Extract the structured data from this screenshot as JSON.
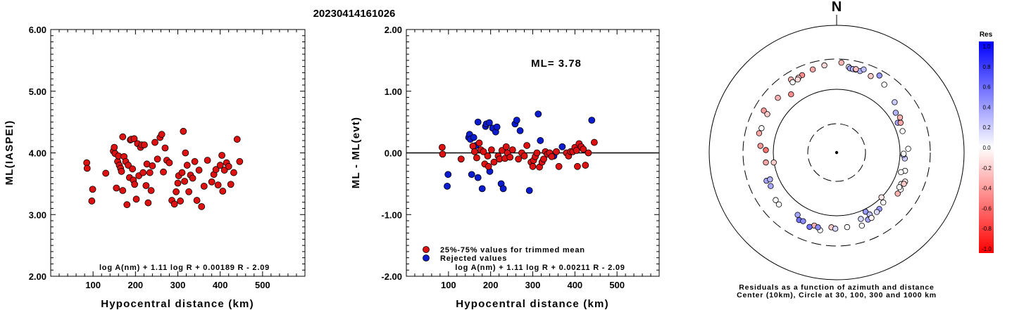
{
  "title": "20230414161026",
  "chart_data": [
    {
      "type": "scatter",
      "ylabel": "ML(IASPEI)",
      "xlabel": "Hypocentral distance (km)",
      "xlim": [
        0,
        600
      ],
      "ylim": [
        2.0,
        6.0
      ],
      "xticks": [
        "100",
        "200",
        "300",
        "400",
        "500"
      ],
      "yticks": [
        "2.00",
        "3.00",
        "4.00",
        "5.00",
        "6.00"
      ],
      "formula": "log A(nm) + 1.11 log R + 0.00189 R - 2.09",
      "point_color": "#dd1111",
      "points": [
        [
          85,
          3.84
        ],
        [
          86,
          3.75
        ],
        [
          99,
          3.41
        ],
        [
          97,
          3.22
        ],
        [
          130,
          3.67
        ],
        [
          148,
          4.03
        ],
        [
          150,
          4.09
        ],
        [
          152,
          3.99
        ],
        [
          155,
          3.43
        ],
        [
          158,
          3.86
        ],
        [
          160,
          3.95
        ],
        [
          162,
          3.8
        ],
        [
          165,
          3.75
        ],
        [
          167,
          3.7
        ],
        [
          170,
          4.26
        ],
        [
          170,
          3.39
        ],
        [
          173,
          3.94
        ],
        [
          177,
          3.86
        ],
        [
          180,
          3.16
        ],
        [
          183,
          3.8
        ],
        [
          186,
          3.6
        ],
        [
          188,
          4.21
        ],
        [
          190,
          4.22
        ],
        [
          193,
          3.74
        ],
        [
          195,
          3.56
        ],
        [
          197,
          4.23
        ],
        [
          198,
          3.49
        ],
        [
          202,
          3.25
        ],
        [
          205,
          4.15
        ],
        [
          208,
          3.63
        ],
        [
          212,
          4.09
        ],
        [
          215,
          4.13
        ],
        [
          218,
          3.68
        ],
        [
          221,
          4.13
        ],
        [
          225,
          3.47
        ],
        [
          227,
          3.82
        ],
        [
          230,
          3.19
        ],
        [
          234,
          3.68
        ],
        [
          237,
          3.39
        ],
        [
          240,
          3.79
        ],
        [
          246,
          4.17
        ],
        [
          252,
          3.9
        ],
        [
          258,
          4.25
        ],
        [
          262,
          4.3
        ],
        [
          266,
          3.69
        ],
        [
          270,
          4.08
        ],
        [
          274,
          3.88
        ],
        [
          280,
          3.84
        ],
        [
          286,
          3.23
        ],
        [
          292,
          3.17
        ],
        [
          296,
          3.37
        ],
        [
          300,
          3.51
        ],
        [
          302,
          3.63
        ],
        [
          306,
          3.22
        ],
        [
          310,
          3.68
        ],
        [
          313,
          4.35
        ],
        [
          316,
          3.54
        ],
        [
          318,
          4.0
        ],
        [
          322,
          3.8
        ],
        [
          326,
          3.37
        ],
        [
          330,
          3.64
        ],
        [
          335,
          3.59
        ],
        [
          340,
          3.86
        ],
        [
          345,
          3.23
        ],
        [
          350,
          3.72
        ],
        [
          356,
          3.13
        ],
        [
          362,
          3.46
        ],
        [
          370,
          3.88
        ],
        [
          380,
          3.53
        ],
        [
          385,
          3.65
        ],
        [
          390,
          3.73
        ],
        [
          395,
          3.48
        ],
        [
          400,
          3.8
        ],
        [
          404,
          3.96
        ],
        [
          406,
          3.38
        ],
        [
          410,
          3.72
        ],
        [
          415,
          3.84
        ],
        [
          420,
          3.78
        ],
        [
          425,
          3.49
        ],
        [
          432,
          3.68
        ],
        [
          440,
          4.22
        ],
        [
          446,
          3.86
        ]
      ]
    },
    {
      "type": "scatter",
      "ylabel": "ML - ML(evt)",
      "xlabel": "Hypocentral distance (km)",
      "xlim": [
        0,
        600
      ],
      "ylim": [
        -2.0,
        2.0
      ],
      "xticks": [
        "100",
        "200",
        "300",
        "400",
        "500"
      ],
      "yticks": [
        "-2.00",
        "-1.00",
        "0.00",
        "1.00",
        "2.00"
      ],
      "annotation": "ML= 3.78",
      "formula": "log A(nm) + 1.11 log R + 0.00211 R - 2.09",
      "legend": [
        {
          "label": "25%-75% values for trimmed mean",
          "color": "#dd1111"
        },
        {
          "label": "Rejected values",
          "color": "#0b1bd0"
        }
      ],
      "reference_line_y": 0.0,
      "points_trimmed": [
        [
          85,
          0.09
        ],
        [
          86,
          -0.02
        ],
        [
          130,
          -0.1
        ],
        [
          158,
          0.11
        ],
        [
          162,
          0.02
        ],
        [
          167,
          -0.08
        ],
        [
          173,
          0.16
        ],
        [
          177,
          0.05
        ],
        [
          183,
          0.02
        ],
        [
          186,
          -0.18
        ],
        [
          193,
          -0.05
        ],
        [
          195,
          -0.22
        ],
        [
          202,
          0.05
        ],
        [
          208,
          -0.15
        ],
        [
          218,
          -0.05
        ],
        [
          221,
          -0.1
        ],
        [
          227,
          0.04
        ],
        [
          234,
          -0.09
        ],
        [
          237,
          0.1
        ],
        [
          240,
          0.0
        ],
        [
          246,
          -0.07
        ],
        [
          252,
          0.05
        ],
        [
          266,
          -0.1
        ],
        [
          274,
          0.0
        ],
        [
          280,
          -0.05
        ],
        [
          286,
          0.12
        ],
        [
          296,
          -0.15
        ],
        [
          300,
          -0.22
        ],
        [
          302,
          -0.12
        ],
        [
          306,
          -0.06
        ],
        [
          310,
          0.0
        ],
        [
          316,
          -0.23
        ],
        [
          322,
          -0.15
        ],
        [
          326,
          -0.1
        ],
        [
          330,
          0.02
        ],
        [
          335,
          -0.02
        ],
        [
          340,
          0.0
        ],
        [
          345,
          -0.06
        ],
        [
          356,
          0.02
        ],
        [
          362,
          -0.22
        ],
        [
          380,
          0.0
        ],
        [
          385,
          -0.05
        ],
        [
          390,
          0.02
        ],
        [
          395,
          0.02
        ],
        [
          400,
          0.09
        ],
        [
          404,
          0.04
        ],
        [
          406,
          -0.22
        ],
        [
          410,
          0.15
        ],
        [
          415,
          0.1
        ],
        [
          420,
          0.06
        ],
        [
          425,
          -0.2
        ],
        [
          432,
          0.0
        ],
        [
          446,
          0.17
        ]
      ],
      "points_rejected": [
        [
          97,
          -0.54
        ],
        [
          99,
          -0.35
        ],
        [
          148,
          0.25
        ],
        [
          150,
          0.3
        ],
        [
          152,
          0.22
        ],
        [
          155,
          -0.35
        ],
        [
          160,
          0.25
        ],
        [
          165,
          0.12
        ],
        [
          170,
          0.5
        ],
        [
          170,
          -0.4
        ],
        [
          180,
          -0.58
        ],
        [
          188,
          0.43
        ],
        [
          190,
          0.47
        ],
        [
          197,
          0.49
        ],
        [
          198,
          -0.3
        ],
        [
          205,
          0.4
        ],
        [
          212,
          0.34
        ],
        [
          215,
          0.42
        ],
        [
          225,
          -0.5
        ],
        [
          230,
          -0.58
        ],
        [
          258,
          0.47
        ],
        [
          262,
          0.53
        ],
        [
          270,
          0.36
        ],
        [
          292,
          -0.61
        ],
        [
          313,
          0.63
        ],
        [
          318,
          0.2
        ],
        [
          350,
          -0.05
        ],
        [
          370,
          0.1
        ],
        [
          440,
          0.53
        ]
      ]
    },
    {
      "type": "polar",
      "direction_label": "N",
      "caption_lines": [
        "Residuals as a function of azimuth and distance",
        "Center (10km), Circle at 30, 100, 300 and 1000 km"
      ],
      "colorbar": {
        "title": "Res",
        "ticks": [
          "1.0",
          "0.8",
          "0.6",
          "0.4",
          "0.2",
          "0.0",
          "-0.2",
          "-0.4",
          "-0.6",
          "-0.8",
          "-1.0"
        ],
        "positive_color": "#0000ff",
        "negative_color": "#ff0000"
      },
      "points": [
        {
          "az": 344,
          "dist": 232,
          "res": -0.35
        },
        {
          "az": 352,
          "dist": 246,
          "res": -0.15
        },
        {
          "az": 3,
          "dist": 264,
          "res": -0.3
        },
        {
          "az": 8,
          "dist": 232,
          "res": 0.1
        },
        {
          "az": 9,
          "dist": 222,
          "res": 0.35
        },
        {
          "az": 11,
          "dist": 220,
          "res": 0.28
        },
        {
          "az": 13,
          "dist": 221,
          "res": 0.22
        },
        {
          "az": 16,
          "dist": 218,
          "res": 0.3
        },
        {
          "az": 13,
          "dist": 225,
          "res": -0.25
        },
        {
          "az": 18,
          "dist": 240,
          "res": 0.25
        },
        {
          "az": 29,
          "dist": 246,
          "res": 0.4
        },
        {
          "az": 24,
          "dist": 210,
          "res": -0.2
        },
        {
          "az": 35,
          "dist": 204,
          "res": 0.0
        },
        {
          "az": 336,
          "dist": 218,
          "res": -0.45
        },
        {
          "az": 333,
          "dist": 212,
          "res": -0.2
        },
        {
          "az": 332,
          "dist": 203,
          "res": -0.15
        },
        {
          "az": 328,
          "dist": 229,
          "res": -0.3
        },
        {
          "az": 328,
          "dist": 204,
          "res": 0.0
        },
        {
          "az": 313,
          "dist": 185,
          "res": -0.3
        },
        {
          "az": 322,
          "dist": 147,
          "res": -0.45
        },
        {
          "az": 300,
          "dist": 212,
          "res": -0.4
        },
        {
          "az": 288,
          "dist": 176,
          "res": 0.0
        },
        {
          "az": 299,
          "dist": 178,
          "res": -0.2
        },
        {
          "az": 284,
          "dist": 182,
          "res": -0.35
        },
        {
          "az": 272,
          "dist": 131,
          "res": -0.55
        },
        {
          "az": 261,
          "dist": 101,
          "res": -0.2
        },
        {
          "az": 262,
          "dist": 134,
          "res": -0.35
        },
        {
          "az": 243,
          "dist": 147,
          "res": 0.35
        },
        {
          "az": 232,
          "dist": 166,
          "res": 0.0
        },
        {
          "az": 212,
          "dist": 145,
          "res": 0.35
        },
        {
          "az": 209,
          "dist": 166,
          "res": 0.55
        },
        {
          "az": 206,
          "dist": 161,
          "res": 0.45
        },
        {
          "az": 197,
          "dist": 161,
          "res": -0.3
        },
        {
          "az": 192,
          "dist": 180,
          "res": 0.0
        },
        {
          "az": 184,
          "dist": 153,
          "res": -0.2
        },
        {
          "az": 172,
          "dist": 155,
          "res": 0.0
        },
        {
          "az": 161,
          "dist": 167,
          "res": 0.0
        },
        {
          "az": 160,
          "dist": 131,
          "res": 0.15
        },
        {
          "az": 155,
          "dist": 148,
          "res": 0.35
        },
        {
          "az": 154,
          "dist": 110,
          "res": 0.4
        },
        {
          "az": 152,
          "dist": 128,
          "res": 0.25
        },
        {
          "az": 152,
          "dist": 148,
          "res": -0.05
        },
        {
          "az": 143,
          "dist": 131,
          "res": 0.4
        },
        {
          "az": 124,
          "dist": 145,
          "res": -0.3
        },
        {
          "az": 120,
          "dist": 147,
          "res": 0.0
        },
        {
          "az": 116,
          "dist": 136,
          "res": 0.0
        },
        {
          "az": 113,
          "dist": 149,
          "res": -0.1
        },
        {
          "az": 115,
          "dist": 148,
          "res": -0.2
        },
        {
          "az": 119,
          "dist": 135,
          "res": 0.0
        },
        {
          "az": 95,
          "dist": 120,
          "res": 0.2
        },
        {
          "az": 105,
          "dist": 131,
          "res": 0.0
        },
        {
          "az": 92,
          "dist": 113,
          "res": 0.3
        },
        {
          "az": 91,
          "dist": 114,
          "res": 0.0
        },
        {
          "az": 87,
          "dist": 135,
          "res": 0.0
        },
        {
          "az": 64,
          "dist": 118,
          "res": 0.35
        },
        {
          "az": 72,
          "dist": 124,
          "res": 0.0
        },
        {
          "az": 65,
          "dist": 130,
          "res": -0.35
        },
        {
          "az": 61,
          "dist": 139,
          "res": -0.3
        },
        {
          "az": 56,
          "dist": 133,
          "res": 0.3
        },
        {
          "az": 49,
          "dist": 163,
          "res": 0.2
        },
        {
          "az": 137,
          "dist": 120,
          "res": 0.0
        },
        {
          "az": 107,
          "dist": 115,
          "res": 0.0
        },
        {
          "az": 146,
          "dist": 136,
          "res": 0.15
        },
        {
          "az": 135,
          "dist": 100,
          "res": -0.1
        },
        {
          "az": 181,
          "dist": 160,
          "res": 0.15
        },
        {
          "az": 200,
          "dist": 178,
          "res": 0.55
        },
        {
          "az": 248,
          "dist": 156,
          "res": 0.35
        },
        {
          "az": 275,
          "dist": 161,
          "res": -0.4
        },
        {
          "az": 248,
          "dist": 136,
          "res": 0.3
        },
        {
          "az": 228,
          "dist": 168,
          "res": 0.0
        },
        {
          "az": 194,
          "dist": 165,
          "res": 0.45
        }
      ]
    }
  ]
}
